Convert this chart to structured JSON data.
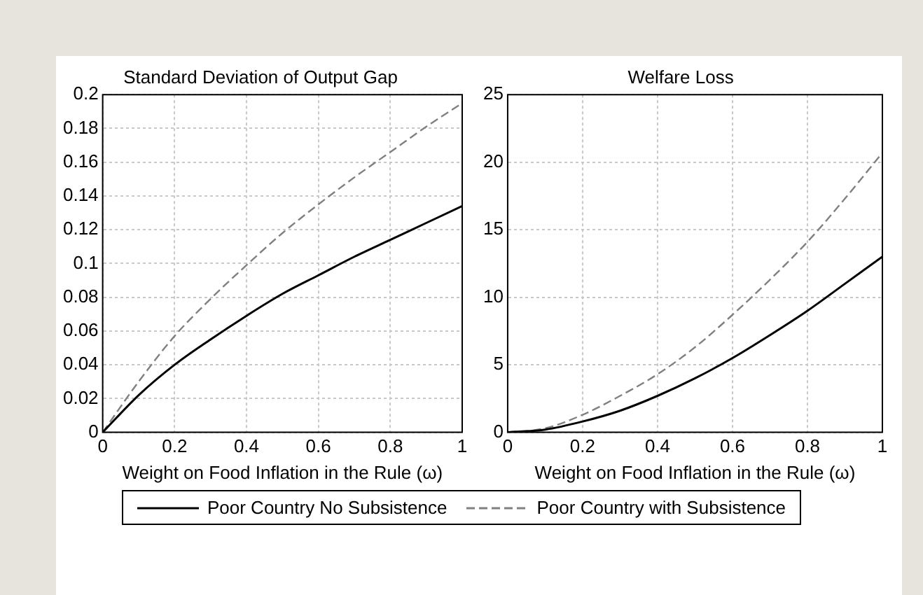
{
  "chart_data": [
    {
      "type": "line",
      "title": "Standard Deviation of Output Gap",
      "xlabel": "Weight on Food Inflation in the Rule (ω)",
      "x": [
        0,
        0.1,
        0.2,
        0.3,
        0.4,
        0.5,
        0.6,
        0.7,
        0.8,
        0.9,
        1
      ],
      "xlim": [
        0,
        1
      ],
      "xticks": [
        0,
        0.2,
        0.4,
        0.6,
        0.8,
        1
      ],
      "ylim": [
        0,
        0.2
      ],
      "yticks": [
        0,
        0.02,
        0.04,
        0.06,
        0.08,
        0.1,
        0.12,
        0.14,
        0.16,
        0.18,
        0.2
      ],
      "grid": true,
      "legend": "bottom",
      "marker": "none",
      "series": [
        {
          "name": "Poor Country No Subsistence",
          "color": "#000000",
          "line_style": "solid",
          "values": [
            0,
            0.022,
            0.04,
            0.055,
            0.069,
            0.082,
            0.093,
            0.104,
            0.114,
            0.124,
            0.134
          ]
        },
        {
          "name": "Poor Country with Subsistence",
          "color": "#808080",
          "line_style": "dashed",
          "values": [
            0,
            0.03,
            0.057,
            0.079,
            0.099,
            0.118,
            0.135,
            0.151,
            0.166,
            0.181,
            0.195
          ]
        }
      ]
    },
    {
      "type": "line",
      "title": "Welfare Loss",
      "xlabel": "Weight on Food Inflation in the Rule (ω)",
      "x": [
        0,
        0.1,
        0.2,
        0.3,
        0.4,
        0.5,
        0.6,
        0.7,
        0.8,
        0.9,
        1
      ],
      "xlim": [
        0,
        1
      ],
      "xticks": [
        0,
        0.2,
        0.4,
        0.6,
        0.8,
        1
      ],
      "ylim": [
        0,
        25
      ],
      "yticks": [
        0,
        5,
        10,
        15,
        20,
        25
      ],
      "grid": true,
      "marker": "none",
      "series": [
        {
          "color": "#000000",
          "line_style": "solid",
          "values": [
            0,
            0.2,
            0.8,
            1.6,
            2.7,
            4.0,
            5.5,
            7.2,
            9.0,
            11.0,
            13.0
          ]
        },
        {
          "color": "#808080",
          "line_style": "dashed",
          "values": [
            0,
            0.3,
            1.3,
            2.7,
            4.3,
            6.3,
            8.7,
            11.3,
            14.1,
            17.3,
            20.7
          ]
        }
      ]
    }
  ]
}
